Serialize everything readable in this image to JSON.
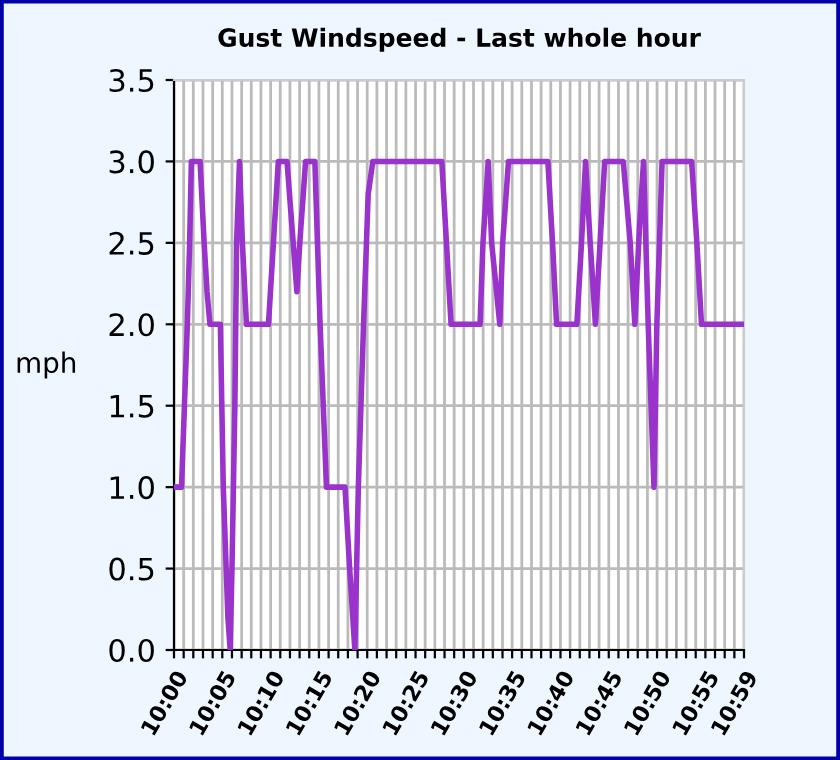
{
  "chart_data": {
    "type": "line",
    "title": "Gust Windspeed - Last whole hour",
    "ylabel": "mph",
    "x": [
      10.0,
      10.013,
      10.018,
      10.023,
      10.027,
      10.03,
      10.045,
      10.052,
      10.057,
      10.062,
      10.08,
      10.085,
      10.09,
      10.093,
      10.097,
      10.1,
      10.105,
      10.108,
      10.113,
      10.118,
      10.125,
      10.163,
      10.18,
      10.195,
      10.212,
      10.217,
      10.227,
      10.243,
      10.252,
      10.263,
      10.295,
      10.303,
      10.312,
      10.318,
      10.327,
      10.335,
      10.343,
      10.462,
      10.47,
      10.478,
      10.528,
      10.533,
      10.542,
      10.548,
      10.562,
      10.567,
      10.577,
      10.645,
      10.653,
      10.66,
      10.695,
      10.703,
      10.71,
      10.718,
      10.727,
      10.735,
      10.743,
      10.775,
      10.787,
      10.795,
      10.803,
      10.81,
      10.818,
      10.823,
      10.828,
      10.833,
      10.842,
      10.893,
      10.902,
      10.91,
      10.983
    ],
    "values": [
      1.0,
      1.0,
      1.5,
      2.0,
      2.5,
      3.0,
      3.0,
      2.5,
      2.2,
      2.0,
      2.0,
      1.0,
      0.5,
      0.2,
      0.0,
      0.5,
      1.5,
      2.5,
      3.0,
      2.5,
      2.0,
      2.0,
      3.0,
      3.0,
      2.2,
      2.5,
      3.0,
      3.0,
      2.0,
      1.0,
      1.0,
      0.5,
      0.0,
      1.0,
      2.0,
      2.8,
      3.0,
      3.0,
      2.5,
      2.0,
      2.0,
      2.5,
      3.0,
      2.5,
      2.0,
      2.5,
      3.0,
      3.0,
      2.5,
      2.0,
      2.0,
      2.5,
      3.0,
      2.5,
      2.0,
      2.5,
      3.0,
      3.0,
      2.5,
      2.0,
      2.6,
      3.0,
      2.0,
      1.5,
      1.0,
      2.0,
      3.0,
      3.0,
      2.5,
      2.0,
      2.0
    ],
    "color": "#9933cc",
    "xlim": [
      10,
      10.9833
    ],
    "xticks": [
      {
        "value": 10,
        "label": "10:00"
      },
      {
        "value": 10.0167,
        "label": null
      },
      {
        "value": 10.0333,
        "label": null
      },
      {
        "value": 10.05,
        "label": null
      },
      {
        "value": 10.0667,
        "label": null
      },
      {
        "value": 10.0833,
        "label": "10:05"
      },
      {
        "value": 10.1,
        "label": null
      },
      {
        "value": 10.1167,
        "label": null
      },
      {
        "value": 10.1333,
        "label": null
      },
      {
        "value": 10.15,
        "label": null
      },
      {
        "value": 10.1667,
        "label": "10:10"
      },
      {
        "value": 10.1833,
        "label": null
      },
      {
        "value": 10.2,
        "label": null
      },
      {
        "value": 10.2167,
        "label": null
      },
      {
        "value": 10.2333,
        "label": null
      },
      {
        "value": 10.25,
        "label": "10:15"
      },
      {
        "value": 10.2667,
        "label": null
      },
      {
        "value": 10.2833,
        "label": null
      },
      {
        "value": 10.3,
        "label": null
      },
      {
        "value": 10.3167,
        "label": null
      },
      {
        "value": 10.3333,
        "label": "10:20"
      },
      {
        "value": 10.35,
        "label": null
      },
      {
        "value": 10.3667,
        "label": null
      },
      {
        "value": 10.3833,
        "label": null
      },
      {
        "value": 10.4,
        "label": null
      },
      {
        "value": 10.4167,
        "label": "10:25"
      },
      {
        "value": 10.4333,
        "label": null
      },
      {
        "value": 10.45,
        "label": null
      },
      {
        "value": 10.4667,
        "label": null
      },
      {
        "value": 10.4833,
        "label": null
      },
      {
        "value": 10.5,
        "label": "10:30"
      },
      {
        "value": 10.5167,
        "label": null
      },
      {
        "value": 10.5333,
        "label": null
      },
      {
        "value": 10.55,
        "label": null
      },
      {
        "value": 10.5667,
        "label": null
      },
      {
        "value": 10.5833,
        "label": "10:35"
      },
      {
        "value": 10.6,
        "label": null
      },
      {
        "value": 10.6167,
        "label": null
      },
      {
        "value": 10.6333,
        "label": null
      },
      {
        "value": 10.65,
        "label": null
      },
      {
        "value": 10.6667,
        "label": "10:40"
      },
      {
        "value": 10.6833,
        "label": null
      },
      {
        "value": 10.7,
        "label": null
      },
      {
        "value": 10.7167,
        "label": null
      },
      {
        "value": 10.7333,
        "label": null
      },
      {
        "value": 10.75,
        "label": "10:45"
      },
      {
        "value": 10.7667,
        "label": null
      },
      {
        "value": 10.7833,
        "label": null
      },
      {
        "value": 10.8,
        "label": null
      },
      {
        "value": 10.8167,
        "label": null
      },
      {
        "value": 10.8333,
        "label": "10:50"
      },
      {
        "value": 10.85,
        "label": null
      },
      {
        "value": 10.8667,
        "label": null
      },
      {
        "value": 10.8833,
        "label": null
      },
      {
        "value": 10.9,
        "label": null
      },
      {
        "value": 10.9167,
        "label": "10:55"
      },
      {
        "value": 10.9333,
        "label": null
      },
      {
        "value": 10.95,
        "label": null
      },
      {
        "value": 10.9667,
        "label": null
      },
      {
        "value": 10.9833,
        "label": "10:59"
      }
    ],
    "ylim": [
      0,
      3.5
    ],
    "yticks": [
      {
        "value": 0,
        "label": "0.0"
      },
      {
        "value": 0.5,
        "label": "0.5"
      },
      {
        "value": 1,
        "label": "1.0"
      },
      {
        "value": 1.5,
        "label": "1.5"
      },
      {
        "value": 2,
        "label": "2.0"
      },
      {
        "value": 2.5,
        "label": "2.5"
      },
      {
        "value": 3,
        "label": "3.0"
      },
      {
        "value": 3.5,
        "label": "3.5"
      }
    ],
    "grid": true
  }
}
